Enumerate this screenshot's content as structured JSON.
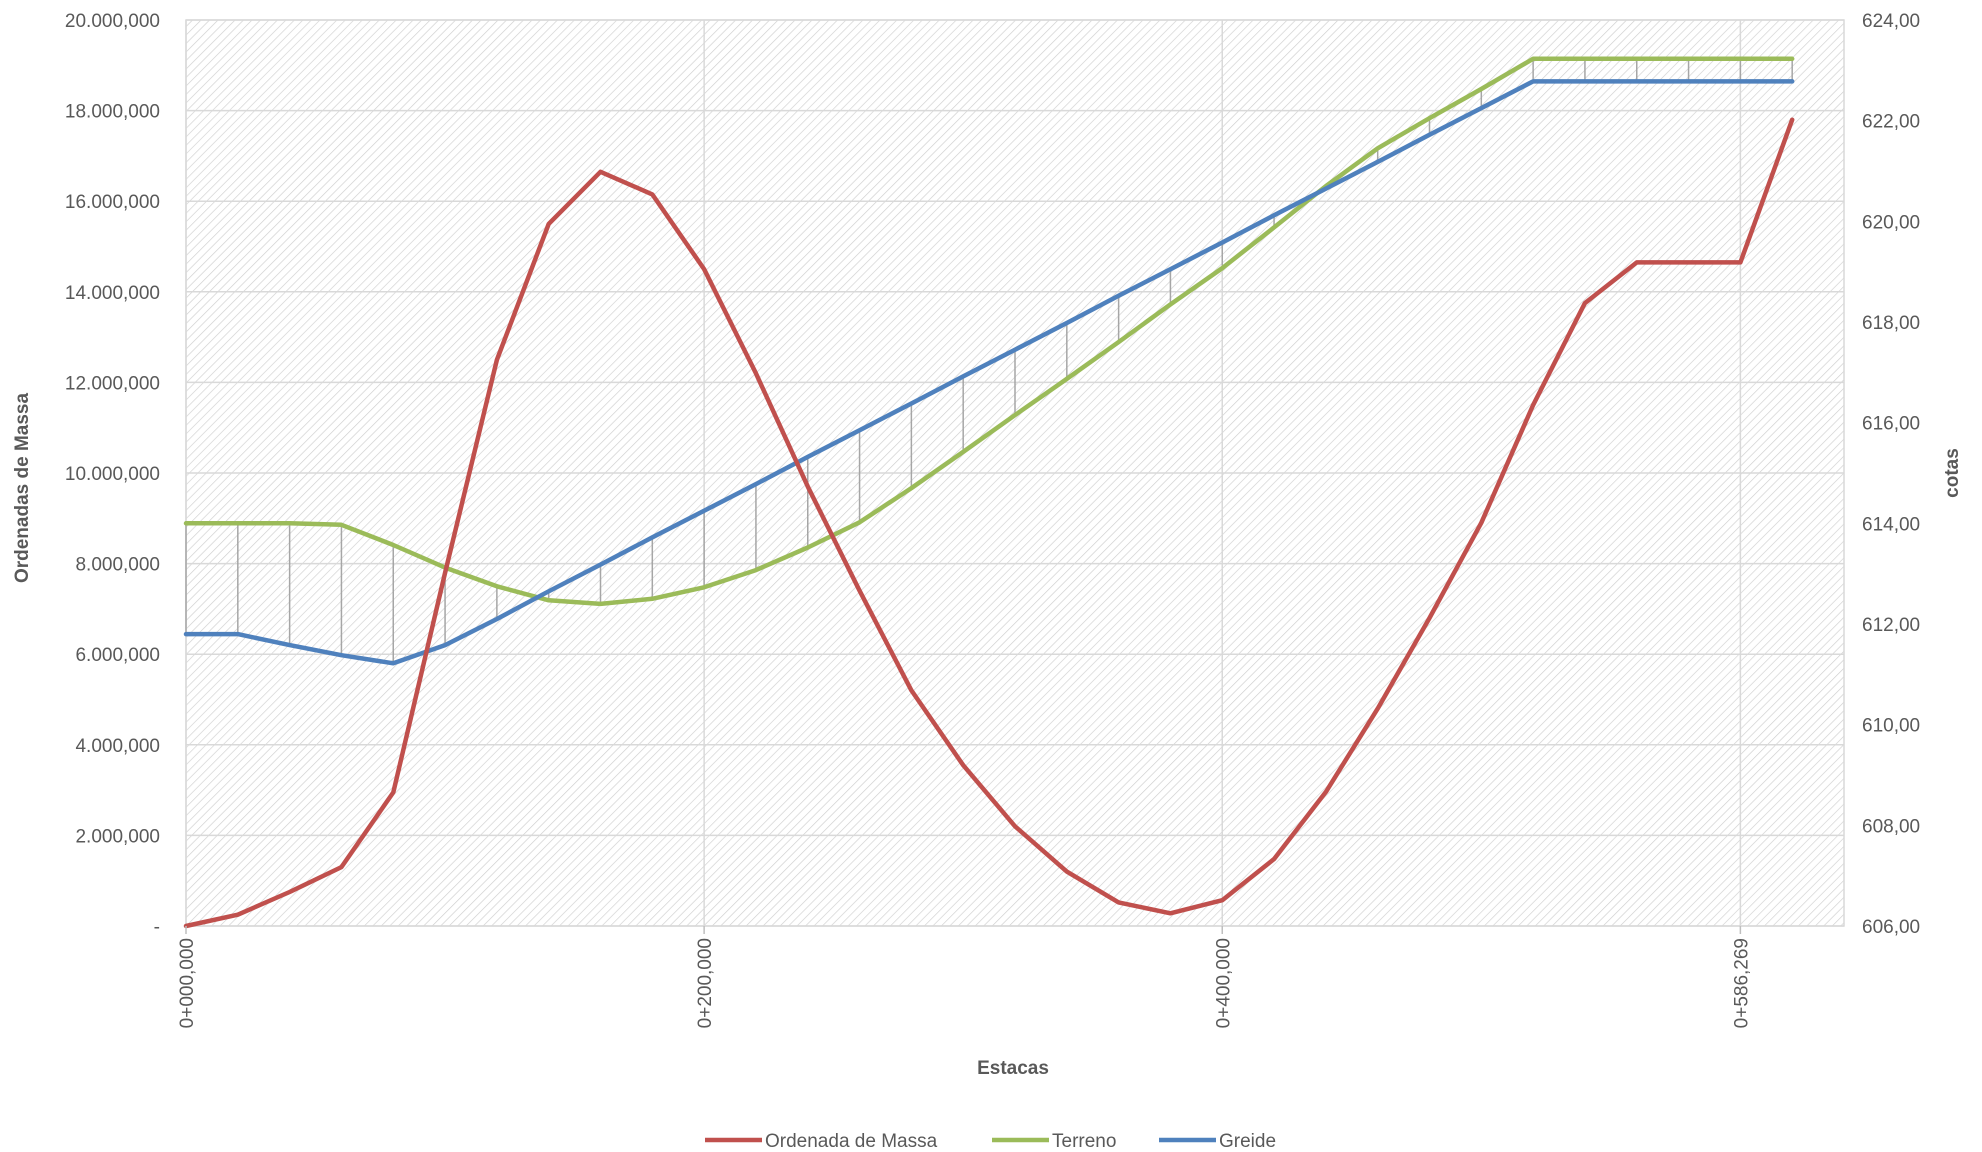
{
  "chart_data": {
    "type": "line",
    "title": "",
    "xlabel": "Estacas",
    "ylabel_left": "Ordenadas de Massa",
    "ylabel_right": "cotas",
    "x_tick_labels": [
      "0+000,000",
      "0+200,000",
      "0+400,000",
      "0+586,269"
    ],
    "x_tick_positions": [
      0,
      200,
      400,
      600
    ],
    "xlim": [
      0,
      640
    ],
    "ylim_left": [
      0,
      20000000
    ],
    "ylim_right": [
      606,
      624
    ],
    "left_tick_labels": [
      "-",
      "2.000,000",
      "4.000,000",
      "6.000,000",
      "8.000,000",
      "10.000,000",
      "12.000,000",
      "14.000,000",
      "16.000,000",
      "18.000,000",
      "20.000,000"
    ],
    "right_tick_labels": [
      "606,00",
      "608,00",
      "610,00",
      "612,00",
      "614,00",
      "616,00",
      "618,00",
      "620,00",
      "622,00",
      "624,00"
    ],
    "grid": true,
    "legend_position": "bottom",
    "x": [
      0,
      20,
      40,
      60,
      80,
      100,
      120,
      140,
      160,
      180,
      200,
      220,
      240,
      260,
      280,
      300,
      320,
      340,
      360,
      380,
      400,
      420,
      440,
      460,
      480,
      500,
      520,
      540,
      560,
      580,
      600,
      620
    ],
    "series": [
      {
        "name": "Ordenada de Massa",
        "axis": "left",
        "color": "#c0504d",
        "values": [
          0,
          250000,
          750000,
          1300000,
          2950000,
          7800000,
          12500000,
          15500000,
          16650000,
          16150000,
          14500000,
          12200000,
          9700000,
          7400000,
          5200000,
          3550000,
          2200000,
          1200000,
          520000,
          280000,
          570000,
          1480000,
          2960000,
          4800000,
          6800000,
          8900000,
          11500000,
          13750000,
          14650000,
          14650000,
          14650000,
          17800000
        ]
      },
      {
        "name": "Terreno",
        "axis": "right",
        "color": "#9bbb59",
        "values": [
          614.0,
          614.0,
          614.0,
          613.97,
          613.57,
          613.12,
          612.75,
          612.47,
          612.4,
          612.5,
          612.73,
          613.07,
          613.52,
          614.02,
          614.7,
          615.42,
          616.15,
          616.87,
          617.6,
          618.35,
          619.07,
          619.88,
          620.7,
          621.45,
          622.05,
          622.63,
          623.23,
          623.23,
          623.23,
          623.23,
          623.23,
          623.23
        ]
      },
      {
        "name": "Greide",
        "axis": "right",
        "color": "#4f81bd",
        "values": [
          611.8,
          611.8,
          611.58,
          611.38,
          611.22,
          611.58,
          612.1,
          612.65,
          613.18,
          613.72,
          614.25,
          614.78,
          615.32,
          615.85,
          616.38,
          616.92,
          617.45,
          617.98,
          618.52,
          619.05,
          619.58,
          620.12,
          620.65,
          621.18,
          621.72,
          622.25,
          622.78,
          622.78,
          622.78,
          622.78,
          622.78,
          622.78
        ]
      }
    ]
  }
}
